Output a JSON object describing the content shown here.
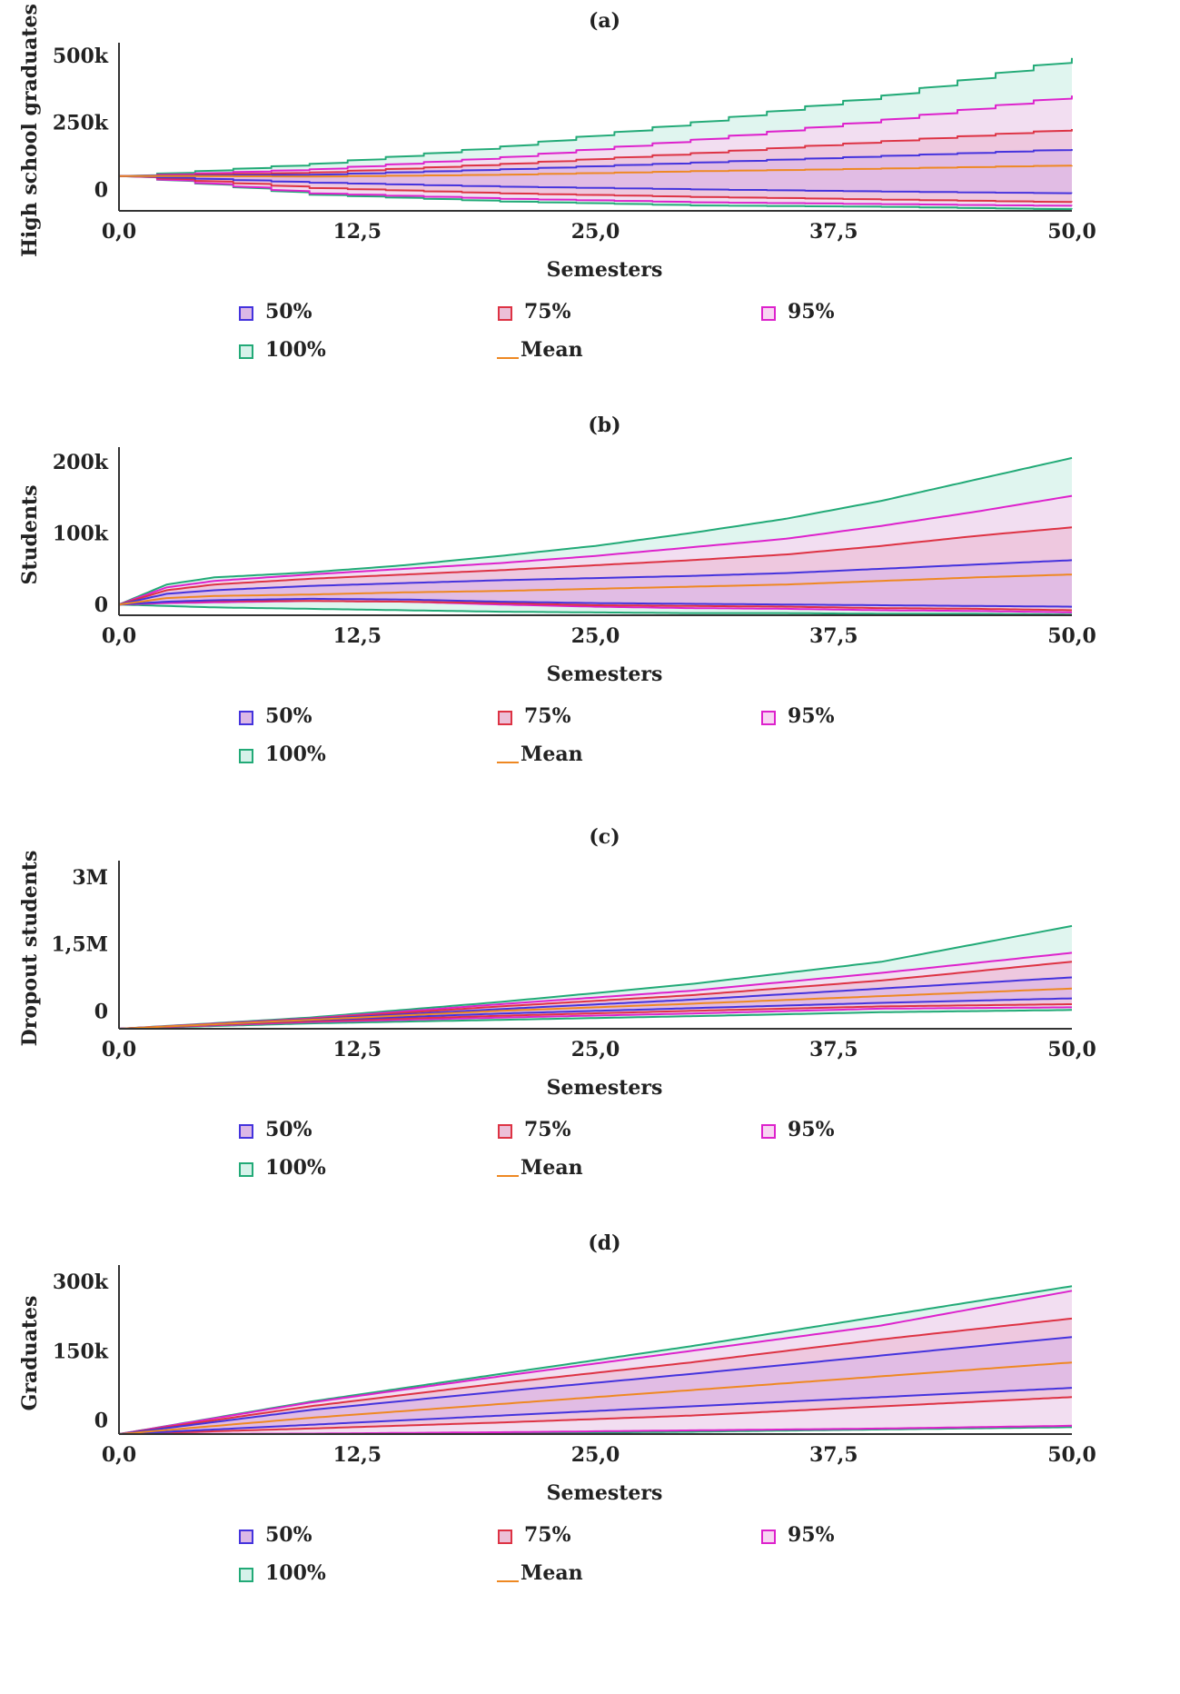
{
  "legend_labels": [
    "50%",
    "75%",
    "95%",
    "100%",
    "Mean"
  ],
  "colors": {
    "p50": "#4433dd",
    "p75": "#dd3344",
    "p95": "#dd22cc",
    "p100": "#22aa77",
    "mean": "#ee8822",
    "fill100": "#d6f2ea",
    "fill95": "#f8d6f2",
    "fill75": "#ecc0d8",
    "fill50": "#dcb8e6",
    "axis": "#333333"
  },
  "chart_data": [
    {
      "type": "area",
      "panel_label": "(a)",
      "xlabel": "Semesters",
      "ylabel": "High school graduates",
      "xlim": [
        0,
        50
      ],
      "ylim": [
        -80000,
        520000
      ],
      "x_ticks": [
        "0,0",
        "12,5",
        "25,0",
        "37,5",
        "50,0"
      ],
      "y_ticks": [
        {
          "value": 0,
          "label": "0"
        },
        {
          "value": 250000,
          "label": "250k"
        },
        {
          "value": 500000,
          "label": "500k"
        }
      ],
      "step": true,
      "x": [
        0,
        10,
        20,
        30,
        40,
        50
      ],
      "series": [
        {
          "name": "100%",
          "upper": [
            50000,
            95000,
            160000,
            250000,
            350000,
            490000
          ],
          "lower": [
            50000,
            -20000,
            -45000,
            -60000,
            -65000,
            -75000
          ]
        },
        {
          "name": "95%",
          "upper": [
            50000,
            75000,
            120000,
            185000,
            260000,
            350000
          ],
          "lower": [
            50000,
            -15000,
            -35000,
            -48000,
            -55000,
            -62000
          ]
        },
        {
          "name": "75%",
          "upper": [
            50000,
            63000,
            95000,
            135000,
            180000,
            225000
          ],
          "lower": [
            50000,
            5000,
            -15000,
            -28000,
            -38000,
            -48000
          ]
        },
        {
          "name": "50%",
          "upper": [
            50000,
            55000,
            75000,
            100000,
            125000,
            150000
          ],
          "lower": [
            50000,
            25000,
            10000,
            0,
            -8000,
            -15000
          ]
        },
        {
          "name": "Mean",
          "line": [
            50000,
            48000,
            55000,
            68000,
            78000,
            90000
          ]
        }
      ]
    },
    {
      "type": "area",
      "panel_label": "(b)",
      "xlabel": "Semesters",
      "ylabel": "Students",
      "xlim": [
        0,
        50
      ],
      "ylim": [
        -15000,
        210000
      ],
      "x_ticks": [
        "0,0",
        "12,5",
        "25,0",
        "37,5",
        "50,0"
      ],
      "y_ticks": [
        {
          "value": 0,
          "label": "0"
        },
        {
          "value": 100000,
          "label": "100k"
        },
        {
          "value": 200000,
          "label": "200k"
        }
      ],
      "step": false,
      "x": [
        0,
        2.5,
        5,
        10,
        15,
        20,
        25,
        30,
        35,
        40,
        45,
        50
      ],
      "series": [
        {
          "name": "100%",
          "upper": [
            0,
            28000,
            38000,
            45000,
            55000,
            68000,
            82000,
            100000,
            120000,
            145000,
            175000,
            205000
          ],
          "lower": [
            0,
            -2000,
            -4000,
            -6000,
            -8000,
            -10000,
            -11000,
            -12000,
            -12000,
            -13000,
            -13000,
            -14000
          ]
        },
        {
          "name": "95%",
          "upper": [
            0,
            24000,
            33000,
            42000,
            50000,
            58000,
            68000,
            80000,
            92000,
            110000,
            130000,
            152000
          ],
          "lower": [
            0,
            2000,
            3000,
            5000,
            4000,
            0,
            -3000,
            -5000,
            -6000,
            -8000,
            -9000,
            -11000
          ]
        },
        {
          "name": "75%",
          "upper": [
            0,
            20000,
            28000,
            36000,
            42000,
            48000,
            55000,
            62000,
            70000,
            82000,
            96000,
            108000
          ],
          "lower": [
            0,
            4000,
            5000,
            5000,
            4000,
            2000,
            -1000,
            -2000,
            -3000,
            -5000,
            -6000,
            -8000
          ]
        },
        {
          "name": "50%",
          "upper": [
            0,
            15000,
            20000,
            26000,
            30000,
            34000,
            37000,
            40000,
            44000,
            50000,
            56000,
            62000
          ],
          "lower": [
            0,
            4000,
            6000,
            8000,
            7000,
            4000,
            2000,
            1000,
            0,
            -1000,
            -2000,
            -3000
          ]
        },
        {
          "name": "Mean",
          "line": [
            0,
            9000,
            12000,
            14000,
            17000,
            19000,
            22000,
            25000,
            28000,
            33000,
            38000,
            42000
          ]
        }
      ]
    },
    {
      "type": "area",
      "panel_label": "(c)",
      "xlabel": "Semesters",
      "ylabel": "Dropout students",
      "xlim": [
        0,
        50
      ],
      "ylim": [
        -400000,
        3200000
      ],
      "x_ticks": [
        "0,0",
        "12,5",
        "25,0",
        "37,5",
        "50,0"
      ],
      "y_ticks": [
        {
          "value": 0,
          "label": "0"
        },
        {
          "value": 1500000,
          "label": "1,5M"
        },
        {
          "value": 3000000,
          "label": "3M"
        }
      ],
      "step": false,
      "x": [
        0,
        10,
        20,
        30,
        40,
        50
      ],
      "series": [
        {
          "name": "100%",
          "upper": [
            -400000,
            -150000,
            200000,
            600000,
            1100000,
            1900000
          ],
          "lower": [
            -400000,
            -280000,
            -200000,
            -120000,
            -30000,
            20000
          ]
        },
        {
          "name": "95%",
          "upper": [
            -400000,
            -170000,
            150000,
            450000,
            850000,
            1300000
          ],
          "lower": [
            -400000,
            -250000,
            -150000,
            -60000,
            50000,
            80000
          ]
        },
        {
          "name": "75%",
          "upper": [
            -400000,
            -180000,
            100000,
            350000,
            680000,
            1100000
          ],
          "lower": [
            -400000,
            -230000,
            -110000,
            0,
            100000,
            150000
          ]
        },
        {
          "name": "50%",
          "upper": [
            -400000,
            -190000,
            40000,
            250000,
            500000,
            750000
          ],
          "lower": [
            -400000,
            -210000,
            -60000,
            60000,
            180000,
            280000
          ]
        },
        {
          "name": "Mean",
          "line": [
            -400000,
            -200000,
            0,
            160000,
            330000,
            500000
          ]
        }
      ]
    },
    {
      "type": "area",
      "panel_label": "(d)",
      "xlabel": "Semesters",
      "ylabel": "Graduates",
      "xlim": [
        0,
        50
      ],
      "ylim": [
        -30000,
        320000
      ],
      "x_ticks": [
        "0,0",
        "12,5",
        "25,0",
        "37,5",
        "50,0"
      ],
      "y_ticks": [
        {
          "value": 0,
          "label": "0"
        },
        {
          "value": 150000,
          "label": "150k"
        },
        {
          "value": 300000,
          "label": "300k"
        }
      ],
      "step": false,
      "x": [
        0,
        10,
        20,
        30,
        40,
        50
      ],
      "series": [
        {
          "name": "100%",
          "upper": [
            -30000,
            40000,
            100000,
            160000,
            225000,
            290000
          ],
          "lower": [
            -30000,
            -30000,
            -28000,
            -25000,
            -20000,
            -15000
          ]
        },
        {
          "name": "95%",
          "upper": [
            -30000,
            38000,
            95000,
            150000,
            205000,
            280000
          ],
          "lower": [
            -30000,
            -29000,
            -26000,
            -22000,
            -18000,
            -12000
          ]
        },
        {
          "name": "75%",
          "upper": [
            -30000,
            30000,
            80000,
            125000,
            175000,
            220000
          ],
          "lower": [
            -30000,
            -18000,
            -5000,
            10000,
            30000,
            50000
          ]
        },
        {
          "name": "50%",
          "upper": [
            -30000,
            22000,
            62000,
            100000,
            140000,
            180000
          ],
          "lower": [
            -30000,
            -10000,
            10000,
            30000,
            50000,
            70000
          ]
        },
        {
          "name": "Mean",
          "line": [
            -30000,
            5000,
            35000,
            65000,
            95000,
            125000
          ]
        }
      ]
    }
  ]
}
